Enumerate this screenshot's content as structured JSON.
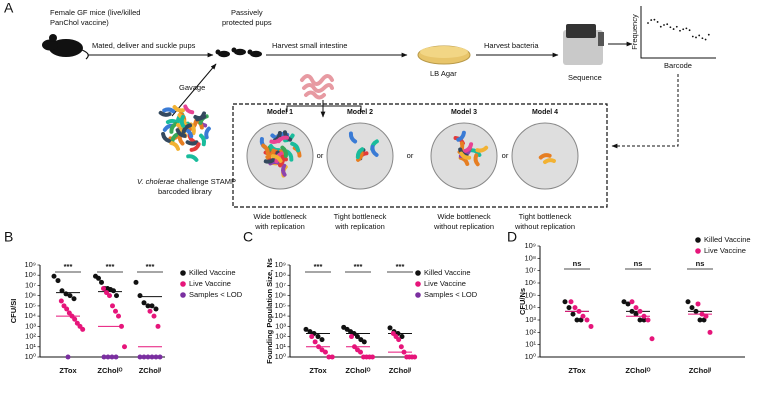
{
  "diagram": {
    "panel": "A",
    "mice": [
      "Female GF mice (live/killed",
      "PanChol vaccine)"
    ],
    "mate": "Mated, deliver and suckle pups",
    "pups": [
      "Passively",
      "protected pups"
    ],
    "gavage": "Gavage",
    "library": {
      "italic": "V. cholerae",
      "rest": " challenge STAMP",
      "line2": "barcoded library"
    },
    "harvest_si": "Harvest small intestine",
    "agar": "LB Agar",
    "harvest_bacteria": "Harvest bacteria",
    "sequence": "Sequence",
    "plot": {
      "ylabel": "Frequency",
      "xlabel": "Barcode"
    },
    "models": [
      {
        "name": "Model 1",
        "desc": [
          "Wide bottleneck",
          "with replication"
        ]
      },
      {
        "name": "Model 2",
        "desc": [
          "Tight bottleneck",
          "with replication"
        ]
      },
      {
        "name": "Model 3",
        "desc": [
          "Wide bottleneck",
          "without replication"
        ]
      },
      {
        "name": "Model 4",
        "desc": [
          "Tight bottleneck",
          "without replication"
        ]
      }
    ],
    "or": [
      "or",
      "or",
      "or"
    ]
  },
  "chart_data": [
    {
      "type": "scatter",
      "panel": "B",
      "ylabel": "CFU/SI",
      "yscale": "log",
      "ylim": [
        1,
        1000000000
      ],
      "yticks": [
        {
          "value": 1,
          "label": "10⁰"
        },
        {
          "value": 10,
          "label": "10¹"
        },
        {
          "value": 100,
          "label": "10²"
        },
        {
          "value": 1000,
          "label": "10³"
        },
        {
          "value": 10000,
          "label": "10⁴"
        },
        {
          "value": 100000,
          "label": "10⁵"
        },
        {
          "value": 1000000,
          "label": "10⁶"
        },
        {
          "value": 10000000,
          "label": "10⁷"
        },
        {
          "value": 100000000,
          "label": "10⁸"
        },
        {
          "value": 1000000000,
          "label": "10⁹"
        }
      ],
      "categories": [
        "ZTox",
        "ZCholᴼ",
        "ZCholᴵ"
      ],
      "annotations": [
        "***",
        "***",
        "***"
      ],
      "series": [
        {
          "name": "Killed Vaccine",
          "color": "#111111",
          "values": [
            [
              80000000,
              30000000,
              3000000,
              1500000,
              1000000,
              500000
            ],
            [
              80000000,
              50000000,
              20000000,
              5000000,
              5000000,
              4000000,
              3000000,
              1000000
            ],
            [
              20000000,
              1000000,
              200000,
              100000,
              100000,
              50000
            ]
          ],
          "medians": [
            2000000,
            2500000,
            800000
          ]
        },
        {
          "name": "Live Vaccine",
          "color": "#e6157a",
          "values": [
            [
              300000,
              100000,
              50000,
              20000,
              10000,
              5000,
              2000,
              1000,
              500
            ],
            [
              5000000,
              2000000,
              1000000,
              100000,
              30000,
              10000,
              1000,
              10
            ],
            [
              30000,
              10000,
              1000
            ]
          ],
          "medians": [
            10000,
            1000,
            10
          ]
        },
        {
          "name": "Samples < LOD",
          "color": "#7a2fa0",
          "values": [
            [
              1
            ],
            [
              1,
              1,
              1,
              1
            ],
            [
              1,
              1,
              1,
              1,
              1,
              1
            ]
          ]
        }
      ]
    },
    {
      "type": "scatter",
      "panel": "C",
      "ylabel": "Founding Population Size, Ns",
      "yscale": "log",
      "ylim": [
        1,
        1000000000
      ],
      "yticks": [
        {
          "value": 1,
          "label": "10⁰"
        },
        {
          "value": 10,
          "label": "10¹"
        },
        {
          "value": 100,
          "label": "10²"
        },
        {
          "value": 1000,
          "label": "10³"
        },
        {
          "value": 10000,
          "label": "10⁴"
        },
        {
          "value": 100000,
          "label": "10⁵"
        },
        {
          "value": 1000000,
          "label": "10⁶"
        },
        {
          "value": 10000000,
          "label": "10⁷"
        },
        {
          "value": 100000000,
          "label": "10⁸"
        },
        {
          "value": 1000000000,
          "label": "10⁹"
        }
      ],
      "categories": [
        "ZTox",
        "ZCholᴼ",
        "ZCholᴵ"
      ],
      "annotations": [
        "***",
        "***",
        "***"
      ],
      "series": [
        {
          "name": "Killed Vaccine",
          "color": "#111111",
          "values": [
            [
              500,
              300,
              200,
              100,
              50
            ],
            [
              800,
              500,
              300,
              200,
              100,
              50,
              30
            ],
            [
              700,
              300,
              200,
              100
            ]
          ],
          "medians": [
            200,
            200,
            200
          ]
        },
        {
          "name": "Live Vaccine",
          "color": "#e6157a",
          "values": [
            [
              100,
              30,
              10,
              5,
              3,
              1,
              1
            ],
            [
              100,
              10,
              5,
              3,
              1,
              1,
              1,
              1
            ],
            [
              200,
              100,
              50,
              10,
              3,
              1,
              1,
              1,
              1
            ]
          ],
          "medians": [
            10,
            10,
            3
          ]
        },
        {
          "name": "Samples < LOD",
          "color": "#7a2fa0",
          "values": [
            [],
            [],
            []
          ]
        }
      ]
    },
    {
      "type": "scatter",
      "panel": "D",
      "ylabel": "CFU/Ns",
      "yscale": "log",
      "ylim": [
        1,
        1000000000
      ],
      "yticks": [
        {
          "value": 1,
          "label": "10⁰"
        },
        {
          "value": 10,
          "label": "10¹"
        },
        {
          "value": 100,
          "label": "10²"
        },
        {
          "value": 1000,
          "label": "10³"
        },
        {
          "value": 10000,
          "label": "10⁴"
        },
        {
          "value": 100000,
          "label": "10⁵"
        },
        {
          "value": 1000000,
          "label": "10⁶"
        },
        {
          "value": 10000000,
          "label": "10⁷"
        },
        {
          "value": 100000000,
          "label": "10⁸"
        },
        {
          "value": 1000000000,
          "label": "10⁹"
        }
      ],
      "categories": [
        "ZTox",
        "ZCholᴼ",
        "ZCholᴵ"
      ],
      "annotations": [
        "ns",
        "ns",
        "ns"
      ],
      "series": [
        {
          "name": "Killed Vaccine",
          "color": "#111111",
          "values": [
            [
              30000,
              10000,
              3000,
              1000,
              1000
            ],
            [
              30000,
              20000,
              5000,
              3000,
              1000,
              1000
            ],
            [
              30000,
              10000,
              5000,
              1000,
              1000
            ]
          ],
          "medians": [
            5000,
            5000,
            5000
          ]
        },
        {
          "name": "Live Vaccine",
          "color": "#e6157a",
          "values": [
            [
              30000,
              10000,
              5000,
              2000,
              1000,
              300
            ],
            [
              30000,
              10000,
              5000,
              2000,
              1000,
              30
            ],
            [
              20000,
              3000,
              2000,
              100
            ]
          ],
          "medians": [
            5000,
            2000,
            3000
          ]
        }
      ]
    }
  ]
}
